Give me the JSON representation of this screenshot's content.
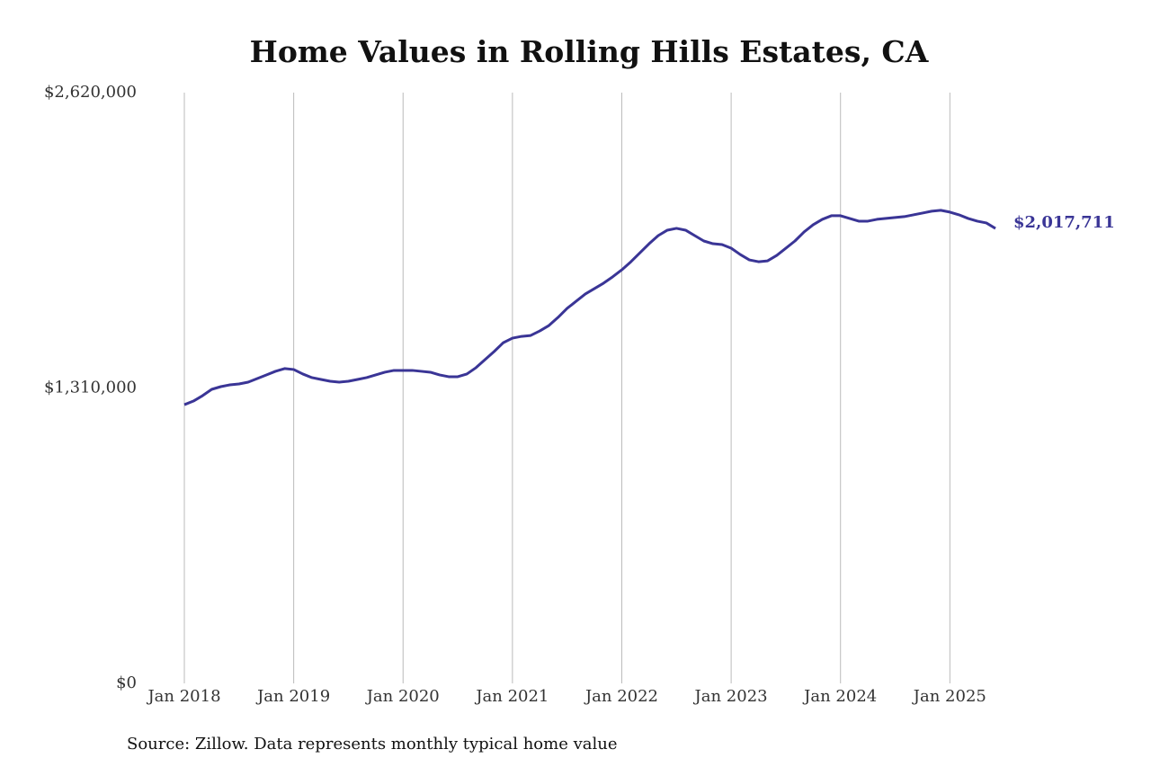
{
  "chart_data": {
    "type": "line",
    "title": "Home Values in Rolling Hills Estates, CA",
    "source": "Source: Zillow. Data represents monthly typical home value",
    "x": [
      "2018-01",
      "2018-02",
      "2018-03",
      "2018-04",
      "2018-05",
      "2018-06",
      "2018-07",
      "2018-08",
      "2018-09",
      "2018-10",
      "2018-11",
      "2018-12",
      "2019-01",
      "2019-02",
      "2019-03",
      "2019-04",
      "2019-05",
      "2019-06",
      "2019-07",
      "2019-08",
      "2019-09",
      "2019-10",
      "2019-11",
      "2019-12",
      "2020-01",
      "2020-02",
      "2020-03",
      "2020-04",
      "2020-05",
      "2020-06",
      "2020-07",
      "2020-08",
      "2020-09",
      "2020-10",
      "2020-11",
      "2020-12",
      "2021-01",
      "2021-02",
      "2021-03",
      "2021-04",
      "2021-05",
      "2021-06",
      "2021-07",
      "2021-08",
      "2021-09",
      "2021-10",
      "2021-11",
      "2021-12",
      "2022-01",
      "2022-02",
      "2022-03",
      "2022-04",
      "2022-05",
      "2022-06",
      "2022-07",
      "2022-08",
      "2022-09",
      "2022-10",
      "2022-11",
      "2022-12",
      "2023-01",
      "2023-02",
      "2023-03",
      "2023-04",
      "2023-05",
      "2023-06",
      "2023-07",
      "2023-08",
      "2023-09",
      "2023-10",
      "2023-11",
      "2023-12",
      "2024-01",
      "2024-02",
      "2024-03",
      "2024-04",
      "2024-05",
      "2024-06",
      "2024-07",
      "2024-08",
      "2024-09",
      "2024-10",
      "2024-11",
      "2024-12",
      "2025-01",
      "2025-02",
      "2025-03",
      "2025-04",
      "2025-05",
      "2025-06"
    ],
    "values": [
      1236000,
      1252000,
      1276000,
      1304000,
      1316000,
      1324000,
      1328000,
      1336000,
      1352000,
      1368000,
      1384000,
      1396000,
      1392000,
      1372000,
      1356000,
      1348000,
      1340000,
      1336000,
      1340000,
      1348000,
      1356000,
      1368000,
      1380000,
      1388000,
      1388000,
      1388000,
      1384000,
      1380000,
      1368000,
      1360000,
      1360000,
      1372000,
      1400000,
      1436000,
      1472000,
      1511000,
      1531000,
      1539000,
      1543000,
      1563000,
      1587000,
      1623000,
      1663000,
      1695000,
      1727000,
      1751000,
      1775000,
      1803000,
      1834000,
      1870000,
      1910000,
      1950000,
      1986000,
      2010000,
      2018000,
      2010000,
      1986000,
      1962000,
      1950000,
      1946000,
      1930000,
      1902000,
      1878000,
      1870000,
      1874000,
      1898000,
      1930000,
      1962000,
      2002000,
      2034000,
      2058000,
      2074000,
      2074000,
      2062000,
      2050000,
      2050000,
      2058000,
      2062000,
      2066000,
      2070000,
      2078000,
      2086000,
      2094000,
      2098000,
      2090000,
      2078000,
      2062000,
      2050000,
      2042000,
      2017711
    ],
    "value_labels": [
      null,
      null,
      null,
      null,
      null,
      null,
      null,
      null,
      null,
      null,
      null,
      null,
      null,
      null,
      null,
      null,
      null,
      null,
      null,
      null,
      null,
      null,
      null,
      null,
      null,
      null,
      null,
      null,
      null,
      null,
      null,
      null,
      null,
      null,
      null,
      null,
      null,
      null,
      null,
      null,
      null,
      null,
      null,
      null,
      null,
      null,
      null,
      null,
      null,
      null,
      null,
      null,
      null,
      null,
      null,
      null,
      null,
      null,
      null,
      null,
      null,
      null,
      null,
      null,
      null,
      null,
      null,
      null,
      null,
      null,
      null,
      null,
      null,
      null,
      null,
      null,
      null,
      null,
      null,
      null,
      null,
      null,
      null,
      null,
      null,
      null,
      null,
      null,
      null,
      "$2,017,711"
    ],
    "color": "#3a3596",
    "ylim": [
      0,
      2620000
    ],
    "yticks": [
      {
        "value": 0,
        "label": "$0"
      },
      {
        "value": 1310000,
        "label": "$1,310,000"
      },
      {
        "value": 2620000,
        "label": "$2,620,000"
      }
    ],
    "xticks": [
      {
        "value": "2018-01",
        "label": "Jan 2018"
      },
      {
        "value": "2019-01",
        "label": "Jan 2019"
      },
      {
        "value": "2020-01",
        "label": "Jan 2020"
      },
      {
        "value": "2021-01",
        "label": "Jan 2021"
      },
      {
        "value": "2022-01",
        "label": "Jan 2022"
      },
      {
        "value": "2023-01",
        "label": "Jan 2023"
      },
      {
        "value": "2024-01",
        "label": "Jan 2024"
      },
      {
        "value": "2025-01",
        "label": "Jan 2025"
      }
    ],
    "grid": "x"
  }
}
